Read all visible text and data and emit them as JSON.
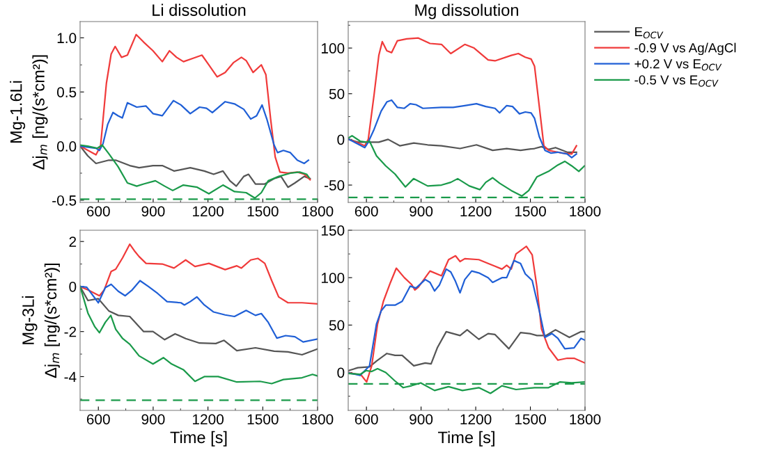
{
  "chart_data": [
    {
      "type": "line",
      "title": "Li dissolution",
      "ylabel": "Mg-1.6Li\nΔj$_{m}$ [ng/(s*cm²)]",
      "xlim": [
        500,
        1800
      ],
      "xticks": [
        600,
        900,
        1200,
        1500,
        1800
      ],
      "ylim": [
        -0.52,
        1.15
      ],
      "yticks": [
        -0.5,
        {
          "value": 0,
          "label": "0.0"
        },
        0.5,
        {
          "value": 1,
          "label": "1.0"
        }
      ],
      "grid": false,
      "legend": false,
      "line_style": "solid",
      "marker": "none",
      "ref_lines": [
        {
          "axis": "y",
          "value": -0.49,
          "color": "#1a9a4a",
          "line_style": "dashed"
        }
      ],
      "series": [
        {
          "color": "#555555",
          "x": [
            500,
            542,
            587,
            657,
            695,
            772,
            823,
            899,
            950,
            1014,
            1103,
            1180,
            1231,
            1282,
            1320,
            1355,
            1396,
            1422,
            1460,
            1511,
            1562,
            1600,
            1638,
            1676,
            1727,
            1759
          ],
          "values": [
            0,
            -0.09,
            -0.16,
            -0.13,
            -0.13,
            -0.18,
            -0.2,
            -0.18,
            -0.18,
            -0.23,
            -0.2,
            -0.23,
            -0.26,
            -0.23,
            -0.32,
            -0.37,
            -0.28,
            -0.26,
            -0.35,
            -0.35,
            -0.3,
            -0.28,
            -0.38,
            -0.34,
            -0.28,
            -0.3
          ]
        },
        {
          "color": "#f03a3a",
          "x": [
            500,
            587,
            612,
            644,
            670,
            692,
            727,
            759,
            807,
            848,
            899,
            950,
            989,
            1028,
            1066,
            1116,
            1167,
            1205,
            1250,
            1294,
            1339,
            1383,
            1409,
            1447,
            1492,
            1517,
            1543,
            1568,
            1594,
            1638,
            1689,
            1727,
            1759
          ],
          "values": [
            0.0,
            -0.08,
            0.0,
            0.58,
            0.85,
            0.92,
            0.82,
            0.84,
            1.03,
            0.96,
            0.88,
            0.78,
            0.88,
            0.82,
            0.78,
            0.81,
            0.84,
            0.75,
            0.64,
            0.68,
            0.77,
            0.82,
            0.79,
            0.68,
            0.75,
            0.66,
            0.25,
            -0.1,
            -0.24,
            -0.25,
            -0.24,
            -0.26,
            -0.31
          ]
        },
        {
          "color": "#1f5fd6",
          "x": [
            500,
            587,
            606,
            625,
            651,
            680,
            708,
            731,
            759,
            810,
            861,
            899,
            950,
            1011,
            1052,
            1103,
            1154,
            1192,
            1224,
            1294,
            1345,
            1396,
            1434,
            1466,
            1496,
            1524,
            1562,
            1581,
            1613,
            1651,
            1689,
            1727,
            1750
          ],
          "values": [
            0,
            -0.02,
            -0.04,
            0.02,
            0.2,
            0.31,
            0.28,
            0.26,
            0.4,
            0.36,
            0.37,
            0.3,
            0.28,
            0.42,
            0.38,
            0.3,
            0.36,
            0.35,
            0.31,
            0.41,
            0.39,
            0.34,
            0.25,
            0.28,
            0.38,
            0.24,
            0.01,
            -0.06,
            -0.04,
            -0.06,
            -0.13,
            -0.16,
            -0.13
          ]
        },
        {
          "color": "#1a9a4a",
          "x": [
            500,
            542,
            593,
            621,
            657,
            708,
            759,
            810,
            848,
            912,
            963,
            1007,
            1065,
            1141,
            1205,
            1282,
            1345,
            1409,
            1457,
            1492,
            1530,
            1587,
            1651,
            1702,
            1740,
            1753
          ],
          "values": [
            0.01,
            0.0,
            -0.02,
            0.01,
            -0.07,
            -0.19,
            -0.34,
            -0.37,
            -0.35,
            -0.32,
            -0.37,
            -0.41,
            -0.36,
            -0.38,
            -0.44,
            -0.36,
            -0.42,
            -0.43,
            -0.48,
            -0.43,
            -0.32,
            -0.28,
            -0.25,
            -0.24,
            -0.26,
            -0.29
          ]
        }
      ]
    },
    {
      "type": "line",
      "title": "Mg dissolution",
      "xlim": [
        500,
        1800
      ],
      "xticks": [
        600,
        900,
        1200,
        1500,
        1800
      ],
      "ylim": [
        -69,
        129
      ],
      "yticks": [
        -50,
        0,
        50,
        100
      ],
      "grid": false,
      "legend": "right",
      "line_style": "solid",
      "marker": "none",
      "ref_lines": [
        {
          "axis": "y",
          "value": -63.5,
          "color": "#1a9a4a",
          "line_style": "dashed"
        }
      ],
      "series": [
        {
          "name": "E$_{OCV}$",
          "color": "#555555",
          "x": [
            502,
            553,
            610,
            668,
            719,
            783,
            860,
            936,
            1012,
            1114,
            1204,
            1293,
            1370,
            1446,
            1523,
            1561,
            1600,
            1638,
            1702,
            1753
          ],
          "values": [
            0,
            -3,
            -3,
            -3,
            0,
            -7,
            -4,
            -6,
            -7,
            -10,
            -6,
            -12,
            -10,
            -12,
            -10,
            -8,
            -11,
            -9,
            -14,
            -14
          ]
        },
        {
          "name": "-0.9 V vs Ag/AgCl",
          "color": "#f03a3a",
          "x": [
            502,
            591,
            610,
            642,
            668,
            687,
            712,
            738,
            770,
            821,
            885,
            949,
            1012,
            1063,
            1140,
            1191,
            1268,
            1306,
            1395,
            1434,
            1472,
            1504,
            1523,
            1549,
            1574,
            1600,
            1625,
            1676,
            1727,
            1753
          ],
          "values": [
            0.3,
            -7,
            0,
            49,
            92,
            107,
            97,
            95,
            108,
            110,
            111,
            105,
            104,
            94,
            104,
            100,
            87,
            86,
            92,
            94,
            90,
            88,
            80,
            36,
            -7,
            -12,
            -13,
            -15,
            -16,
            -7
          ]
        },
        {
          "name": "+0.2 V vs E$_{OCV}$",
          "color": "#1f5fd6",
          "x": [
            502,
            591,
            610,
            642,
            681,
            712,
            738,
            770,
            808,
            840,
            872,
            910,
            1012,
            1076,
            1140,
            1204,
            1255,
            1306,
            1331,
            1370,
            1402,
            1440,
            1472,
            1504,
            1523,
            1549,
            1580,
            1612,
            1651,
            1702,
            1727,
            1753
          ],
          "values": [
            0.3,
            -9,
            -3,
            11,
            31,
            41,
            43,
            35,
            34,
            39,
            38,
            34,
            35,
            35,
            37,
            39,
            36,
            34,
            29,
            37,
            36,
            28,
            30,
            29,
            23,
            3,
            -12,
            -15,
            -14,
            -16,
            -20,
            -16
          ]
        },
        {
          "name": "-0.5 V vs E$_{OCV}$",
          "color": "#1a9a4a",
          "x": [
            502,
            521,
            566,
            600,
            617,
            655,
            706,
            757,
            814,
            859,
            936,
            1012,
            1063,
            1101,
            1165,
            1223,
            1255,
            1293,
            1331,
            1395,
            1453,
            1491,
            1536,
            1600,
            1651,
            1689,
            1727,
            1766,
            1797
          ],
          "values": [
            1.6,
            4,
            -2,
            -3,
            -2,
            -18,
            -29,
            -38,
            -52,
            -43,
            -51,
            -50,
            -47,
            -43,
            -51,
            -55,
            -47,
            -42,
            -48,
            -56,
            -62,
            -56,
            -41,
            -35,
            -28,
            -24,
            -29,
            -35,
            -29
          ]
        }
      ]
    },
    {
      "type": "line",
      "ylabel": "Mg-3Li\nΔj$_{m}$ [ng/(s*cm²)]",
      "xlabel": "Time [s]",
      "xlim": [
        500,
        1800
      ],
      "xticks": [
        600,
        900,
        1200,
        1500,
        1800
      ],
      "ylim": [
        -5.5,
        2.5
      ],
      "yticks": [
        -4,
        -2,
        0,
        2
      ],
      "grid": false,
      "legend": false,
      "line_style": "solid",
      "marker": "none",
      "ref_lines": [
        {
          "axis": "y",
          "value": -5.05,
          "color": "#1a9a4a",
          "line_style": "dashed"
        }
      ],
      "series": [
        {
          "color": "#555555",
          "x": [
            500,
            543,
            600,
            657,
            709,
            772,
            848,
            899,
            963,
            1020,
            1078,
            1154,
            1243,
            1288,
            1358,
            1460,
            1562,
            1638,
            1715,
            1800
          ],
          "values": [
            0,
            -0.62,
            -0.54,
            -1.08,
            -1.28,
            -1.33,
            -2.0,
            -2.0,
            -2.36,
            -2.1,
            -2.31,
            -2.51,
            -2.53,
            -2.39,
            -2.85,
            -2.72,
            -2.87,
            -2.9,
            -3.03,
            -2.77
          ]
        },
        {
          "color": "#f03a3a",
          "x": [
            500,
            543,
            606,
            632,
            670,
            695,
            733,
            772,
            797,
            823,
            861,
            950,
            1014,
            1078,
            1129,
            1205,
            1294,
            1358,
            1383,
            1434,
            1473,
            1511,
            1549,
            1587,
            1638,
            1715,
            1800
          ],
          "values": [
            0.0,
            -0.15,
            -0.41,
            -0.15,
            0.67,
            0.77,
            1.28,
            1.88,
            1.59,
            1.33,
            1.03,
            1.0,
            0.82,
            1.18,
            0.89,
            1.03,
            0.75,
            0.92,
            0.82,
            1.18,
            1.25,
            1.03,
            0.26,
            -0.46,
            -0.72,
            -0.72,
            -0.77
          ]
        },
        {
          "color": "#1f5fd6",
          "x": [
            500,
            536,
            600,
            638,
            670,
            709,
            747,
            785,
            828,
            874,
            925,
            976,
            1052,
            1071,
            1103,
            1139,
            1180,
            1231,
            1294,
            1345,
            1409,
            1460,
            1492,
            1530,
            1577,
            1625,
            1676,
            1721,
            1800
          ],
          "values": [
            0,
            -0.03,
            -0.72,
            -0.05,
            0.1,
            -0.21,
            -0.41,
            -0.15,
            0.26,
            0.0,
            -0.31,
            -0.67,
            -0.72,
            -0.82,
            -0.67,
            -0.46,
            -0.82,
            -1.13,
            -1.26,
            -1.33,
            -1.06,
            -1.28,
            -1.2,
            -1.59,
            -2.29,
            -2.18,
            -2.23,
            -2.46,
            -2.33
          ]
        },
        {
          "color": "#1a9a4a",
          "x": [
            500,
            543,
            581,
            606,
            638,
            668,
            695,
            733,
            772,
            823,
            899,
            956,
            1001,
            1065,
            1129,
            1180,
            1256,
            1358,
            1485,
            1549,
            1613,
            1715,
            1772,
            1800
          ],
          "values": [
            0,
            -1.18,
            -1.79,
            -2.05,
            -1.59,
            -1.28,
            -1.9,
            -2.31,
            -2.56,
            -3.08,
            -3.44,
            -3.16,
            -3.44,
            -3.69,
            -4.21,
            -4.0,
            -4.0,
            -4.24,
            -4.21,
            -4.31,
            -4.13,
            -4.05,
            -3.9,
            -3.97
          ]
        }
      ]
    },
    {
      "type": "line",
      "xlabel": "Time [s]",
      "xlim": [
        500,
        1800
      ],
      "xticks": [
        600,
        900,
        1200,
        1500,
        1800
      ],
      "ylim": [
        -40,
        150
      ],
      "yticks": [
        0,
        50,
        100,
        150
      ],
      "grid": false,
      "legend": false,
      "line_style": "solid",
      "marker": "none",
      "ref_lines": [
        {
          "axis": "y",
          "value": -12,
          "color": "#1a9a4a",
          "line_style": "dashed"
        }
      ],
      "series": [
        {
          "color": "#555555",
          "x": [
            502,
            553,
            617,
            655,
            712,
            757,
            796,
            860,
            923,
            955,
            989,
            1038,
            1114,
            1153,
            1217,
            1268,
            1306,
            1382,
            1446,
            1497,
            1536,
            1587,
            1638,
            1714,
            1778,
            1800
          ],
          "values": [
            2,
            5,
            6,
            12,
            20,
            18,
            18,
            7,
            10,
            9,
            26,
            43,
            39,
            45,
            35,
            41,
            40,
            25,
            42,
            41,
            39,
            39,
            45,
            37,
            43,
            43
          ]
        },
        {
          "color": "#f03a3a",
          "x": [
            502,
            572,
            601,
            629,
            661,
            693,
            732,
            764,
            808,
            847,
            866,
            885,
            949,
            1012,
            1051,
            1089,
            1114,
            1140,
            1217,
            1268,
            1306,
            1344,
            1370,
            1395,
            1421,
            1478,
            1510,
            1536,
            1561,
            1600,
            1651,
            1702,
            1740,
            1800
          ],
          "values": [
            0,
            -3,
            -10,
            7,
            51,
            75,
            95,
            110,
            100,
            93,
            87,
            90,
            107,
            102,
            119,
            123,
            117,
            120,
            119,
            115,
            112,
            109,
            113,
            109,
            125,
            133,
            124,
            90,
            46,
            26,
            13,
            15,
            15,
            10
          ]
        },
        {
          "color": "#1f5fd6",
          "x": [
            502,
            566,
            617,
            655,
            681,
            706,
            757,
            796,
            840,
            872,
            923,
            949,
            974,
            1000,
            1038,
            1063,
            1089,
            1114,
            1140,
            1178,
            1217,
            1268,
            1293,
            1344,
            1370,
            1410,
            1446,
            1472,
            1510,
            1549,
            1580,
            1619,
            1651,
            1689,
            1740,
            1778,
            1800
          ],
          "values": [
            -0.5,
            -3,
            7,
            51,
            65,
            71,
            71,
            75,
            91,
            89,
            98,
            95,
            86,
            92,
            109,
            106,
            96,
            84,
            98,
            107,
            105,
            100,
            95,
            100,
            100,
            118,
            115,
            104,
            97,
            65,
            37,
            41,
            36,
            25,
            26,
            36,
            34
          ]
        },
        {
          "color": "#1a9a4a",
          "x": [
            502,
            566,
            598,
            629,
            661,
            706,
            757,
            802,
            847,
            898,
            974,
            1051,
            1127,
            1217,
            1281,
            1344,
            1421,
            1523,
            1600,
            1663,
            1727,
            1800
          ],
          "values": [
            -1,
            -2,
            2,
            1,
            4,
            0,
            -9,
            -16,
            -14,
            -11,
            -19,
            -15,
            -19,
            -16,
            -22,
            -14,
            -18,
            -16,
            -16,
            -10,
            -11,
            -10
          ]
        }
      ]
    }
  ]
}
